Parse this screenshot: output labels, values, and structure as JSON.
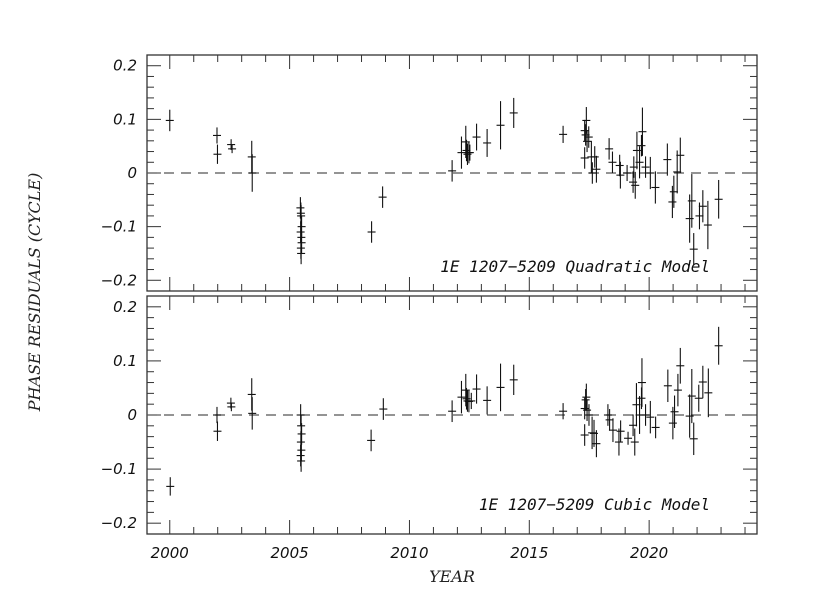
{
  "chart_data": [
    {
      "type": "scatter",
      "panel_label": "1E 1207−5209 Quadratic Model",
      "xlabel": "YEAR",
      "ylabel": "PHASE RESIDUALS (CYCLE)",
      "xlim": [
        1999.05,
        2024.5
      ],
      "ylim": [
        -0.22,
        0.22
      ],
      "x_ticks": [
        "2000",
        "2005",
        "2010",
        "2015",
        "2020"
      ],
      "y_ticks": [
        "0.2",
        "0.1",
        "0",
        "−0.1",
        "−0.2"
      ],
      "reference_line": 0,
      "points_year_value_error": [
        [
          2000.0,
          0.098,
          0.02
        ],
        [
          2001.97,
          0.07,
          0.015
        ],
        [
          2001.99,
          0.035,
          0.018
        ],
        [
          2002.56,
          0.053,
          0.01
        ],
        [
          2002.6,
          0.045,
          0.008
        ],
        [
          2003.42,
          0.03,
          0.03
        ],
        [
          2003.44,
          0.0,
          0.035
        ],
        [
          2005.45,
          -0.065,
          0.02
        ],
        [
          2005.47,
          -0.075,
          0.02
        ],
        [
          2005.48,
          -0.08,
          0.02
        ],
        [
          2005.5,
          -0.1,
          0.02
        ],
        [
          2005.46,
          -0.11,
          0.02
        ],
        [
          2005.49,
          -0.12,
          0.02
        ],
        [
          2005.5,
          -0.13,
          0.02
        ],
        [
          2005.47,
          -0.14,
          0.02
        ],
        [
          2005.48,
          -0.15,
          0.02
        ],
        [
          2008.42,
          -0.11,
          0.02
        ],
        [
          2008.88,
          -0.045,
          0.02
        ],
        [
          2011.78,
          0.004,
          0.02
        ],
        [
          2012.17,
          0.038,
          0.03
        ],
        [
          2012.35,
          0.058,
          0.03
        ],
        [
          2012.38,
          0.042,
          0.02
        ],
        [
          2012.42,
          0.035,
          0.02
        ],
        [
          2012.48,
          0.038,
          0.02
        ],
        [
          2012.52,
          0.038,
          0.015
        ],
        [
          2012.8,
          0.067,
          0.025
        ],
        [
          2013.24,
          0.056,
          0.026
        ],
        [
          2013.8,
          0.089,
          0.045
        ],
        [
          2014.35,
          0.112,
          0.028
        ],
        [
          2016.41,
          0.072,
          0.016
        ],
        [
          2017.31,
          0.079,
          0.02
        ],
        [
          2017.35,
          0.071,
          0.02
        ],
        [
          2017.38,
          0.098,
          0.025
        ],
        [
          2017.41,
          0.059,
          0.02
        ],
        [
          2017.31,
          0.028,
          0.02
        ],
        [
          2017.48,
          0.067,
          0.02
        ],
        [
          2017.59,
          0.03,
          0.03
        ],
        [
          2017.63,
          0.0,
          0.02
        ],
        [
          2017.73,
          0.03,
          0.02
        ],
        [
          2017.8,
          0.007,
          0.025
        ],
        [
          2018.33,
          0.045,
          0.02
        ],
        [
          2018.47,
          0.02,
          0.02
        ],
        [
          2018.77,
          0.014,
          0.02
        ],
        [
          2018.8,
          -0.004,
          0.025
        ],
        [
          2019.08,
          0.0,
          0.015
        ],
        [
          2019.33,
          -0.017,
          0.02
        ],
        [
          2019.36,
          0.011,
          0.02
        ],
        [
          2019.42,
          -0.023,
          0.025
        ],
        [
          2019.49,
          0.042,
          0.035
        ],
        [
          2019.6,
          0.02,
          0.03
        ],
        [
          2019.68,
          0.051,
          0.02
        ],
        [
          2019.72,
          0.077,
          0.045
        ],
        [
          2019.85,
          0.011,
          0.02
        ],
        [
          2020.05,
          0.0,
          0.03
        ],
        [
          2020.26,
          -0.027,
          0.03
        ],
        [
          2020.76,
          0.025,
          0.03
        ],
        [
          2020.97,
          -0.054,
          0.03
        ],
        [
          2021.03,
          -0.035,
          0.03
        ],
        [
          2021.17,
          0.002,
          0.04
        ],
        [
          2021.3,
          0.033,
          0.033
        ],
        [
          2021.69,
          -0.085,
          0.045
        ],
        [
          2021.78,
          -0.052,
          0.05
        ],
        [
          2021.86,
          -0.142,
          0.03
        ],
        [
          2022.1,
          -0.08,
          0.025
        ],
        [
          2022.24,
          -0.062,
          0.03
        ],
        [
          2022.45,
          -0.097,
          0.045
        ],
        [
          2022.9,
          -0.049,
          0.036
        ]
      ]
    },
    {
      "type": "scatter",
      "panel_label": "1E 1207−5209 Cubic Model",
      "xlabel": "YEAR",
      "ylabel": "PHASE RESIDUALS (CYCLE)",
      "xlim": [
        1999.05,
        2024.5
      ],
      "ylim": [
        -0.22,
        0.22
      ],
      "x_ticks": [
        "2000",
        "2005",
        "2010",
        "2015",
        "2020"
      ],
      "y_ticks": [
        "0.2",
        "0.1",
        "0",
        "−0.1",
        "−0.2"
      ],
      "reference_line": 0,
      "points_year_value_error": [
        [
          2000.02,
          -0.132,
          0.017
        ],
        [
          2001.97,
          0.0,
          0.015
        ],
        [
          2001.99,
          -0.03,
          0.018
        ],
        [
          2002.55,
          0.022,
          0.01
        ],
        [
          2002.57,
          0.015,
          0.008
        ],
        [
          2003.42,
          0.038,
          0.03
        ],
        [
          2003.44,
          0.003,
          0.03
        ],
        [
          2005.46,
          0.0,
          0.02
        ],
        [
          2005.48,
          -0.02,
          0.02
        ],
        [
          2005.5,
          -0.035,
          0.02
        ],
        [
          2005.47,
          -0.05,
          0.02
        ],
        [
          2005.49,
          -0.065,
          0.02
        ],
        [
          2005.46,
          -0.075,
          0.02
        ],
        [
          2005.48,
          -0.085,
          0.02
        ],
        [
          2008.4,
          -0.047,
          0.02
        ],
        [
          2008.91,
          0.011,
          0.02
        ],
        [
          2011.78,
          0.007,
          0.02
        ],
        [
          2012.17,
          0.033,
          0.03
        ],
        [
          2012.35,
          0.046,
          0.03
        ],
        [
          2012.38,
          0.03,
          0.02
        ],
        [
          2012.42,
          0.026,
          0.02
        ],
        [
          2012.48,
          0.025,
          0.02
        ],
        [
          2012.58,
          0.026,
          0.015
        ],
        [
          2012.8,
          0.048,
          0.027
        ],
        [
          2013.24,
          0.027,
          0.026
        ],
        [
          2013.8,
          0.051,
          0.044
        ],
        [
          2014.35,
          0.065,
          0.028
        ],
        [
          2016.41,
          0.007,
          0.015
        ],
        [
          2017.31,
          0.012,
          0.02
        ],
        [
          2017.35,
          0.028,
          0.02
        ],
        [
          2017.38,
          0.033,
          0.025
        ],
        [
          2017.31,
          -0.037,
          0.02
        ],
        [
          2017.41,
          0.009,
          0.02
        ],
        [
          2017.49,
          0.0,
          0.02
        ],
        [
          2017.62,
          -0.033,
          0.03
        ],
        [
          2017.7,
          -0.034,
          0.025
        ],
        [
          2017.8,
          -0.053,
          0.025
        ],
        [
          2018.28,
          0.0,
          0.02
        ],
        [
          2018.35,
          -0.009,
          0.02
        ],
        [
          2018.49,
          -0.028,
          0.022
        ],
        [
          2018.74,
          -0.05,
          0.025
        ],
        [
          2018.81,
          -0.03,
          0.02
        ],
        [
          2019.12,
          -0.043,
          0.012
        ],
        [
          2019.33,
          -0.019,
          0.02
        ],
        [
          2019.4,
          -0.05,
          0.025
        ],
        [
          2019.47,
          0.019,
          0.04
        ],
        [
          2019.6,
          0.0,
          0.035
        ],
        [
          2019.68,
          0.031,
          0.02
        ],
        [
          2019.7,
          0.06,
          0.045
        ],
        [
          2019.85,
          0.0,
          0.02
        ],
        [
          2020.05,
          -0.004,
          0.03
        ],
        [
          2020.27,
          -0.023,
          0.02
        ],
        [
          2020.78,
          0.054,
          0.03
        ],
        [
          2020.99,
          -0.015,
          0.03
        ],
        [
          2021.06,
          0.006,
          0.03
        ],
        [
          2021.2,
          0.046,
          0.03
        ],
        [
          2021.3,
          0.091,
          0.033
        ],
        [
          2021.69,
          -0.002,
          0.04
        ],
        [
          2021.78,
          0.035,
          0.05
        ],
        [
          2021.86,
          -0.044,
          0.03
        ],
        [
          2022.07,
          0.031,
          0.025
        ],
        [
          2022.24,
          0.061,
          0.03
        ],
        [
          2022.47,
          0.041,
          0.045
        ],
        [
          2022.9,
          0.128,
          0.035
        ]
      ]
    }
  ]
}
